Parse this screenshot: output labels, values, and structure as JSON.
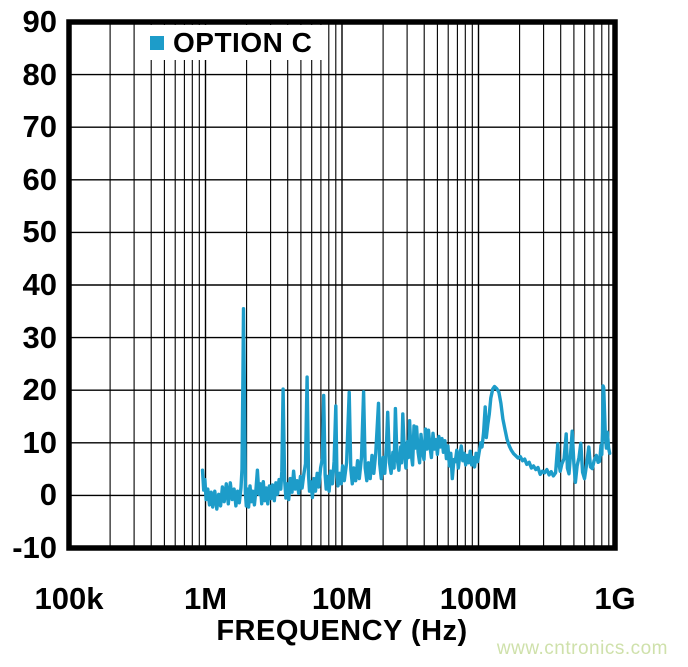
{
  "colors": {
    "background": "#ffffff",
    "grid": "#000000",
    "frame": "#000000",
    "trace": "#1d9cc9",
    "legend_bg": "#ffffff",
    "text": "#000000",
    "watermark": "#cfe1ab"
  },
  "watermark": {
    "text": "www.cntronics.com"
  },
  "chart_data": {
    "type": "line",
    "title": "",
    "x_axis": {
      "label": "FREQUENCY (Hz)",
      "scale": "log",
      "unit": "Hz",
      "range_hz": [
        100000,
        1000000000
      ],
      "ticks": [
        {
          "mhz": 0.1,
          "label": "100k"
        },
        {
          "mhz": 1,
          "label": "1M"
        },
        {
          "mhz": 10,
          "label": "10M"
        },
        {
          "mhz": 100,
          "label": "100M"
        },
        {
          "mhz": 1000,
          "label": "1G"
        }
      ],
      "minor_grid": "log sub-decades 2-9"
    },
    "y_axis": {
      "label": "",
      "range": [
        -10,
        90
      ],
      "tick_step": 10,
      "ticks": [
        90,
        80,
        70,
        60,
        50,
        40,
        30,
        20,
        10,
        0,
        -10
      ]
    },
    "grid": "on",
    "legend": {
      "position": "top-left-inside",
      "entries": [
        {
          "label": "OPTION C",
          "color": "#1d9cc9"
        }
      ]
    },
    "series": [
      {
        "name": "OPTION C",
        "color": "#1d9cc9",
        "units": "x in MHz, y in dB",
        "points_mhz_db": [
          [
            0.95,
            4.8
          ],
          [
            0.97,
            1.0
          ],
          [
            0.99,
            3.0
          ],
          [
            1.01,
            -0.8
          ],
          [
            1.04,
            1.2
          ],
          [
            1.07,
            -1.8
          ],
          [
            1.1,
            0.6
          ],
          [
            1.13,
            -2.2
          ],
          [
            1.17,
            0.8
          ],
          [
            1.21,
            -2.6
          ],
          [
            1.25,
            0.2
          ],
          [
            1.29,
            -2.0
          ],
          [
            1.33,
            1.6
          ],
          [
            1.37,
            -1.2
          ],
          [
            1.42,
            2.2
          ],
          [
            1.47,
            -1.6
          ],
          [
            1.52,
            2.4
          ],
          [
            1.57,
            -0.8
          ],
          [
            1.62,
            1.2
          ],
          [
            1.67,
            -2.0
          ],
          [
            1.72,
            0.8
          ],
          [
            1.77,
            -1.4
          ],
          [
            1.82,
            1.5
          ],
          [
            1.85,
            5.0
          ],
          [
            1.88,
            22.0
          ],
          [
            1.9,
            35.5
          ],
          [
            1.93,
            18.0
          ],
          [
            1.96,
            0.5
          ],
          [
            1.99,
            -2.0
          ],
          [
            2.03,
            1.2
          ],
          [
            2.07,
            -2.2
          ],
          [
            2.12,
            1.8
          ],
          [
            2.17,
            -1.2
          ],
          [
            2.22,
            0.8
          ],
          [
            2.28,
            -1.8
          ],
          [
            2.34,
            1.0
          ],
          [
            2.4,
            4.8
          ],
          [
            2.46,
            0.2
          ],
          [
            2.52,
            2.2
          ],
          [
            2.58,
            -1.6
          ],
          [
            2.65,
            2.6
          ],
          [
            2.72,
            -1.0
          ],
          [
            2.79,
            1.4
          ],
          [
            2.86,
            -1.6
          ],
          [
            2.94,
            1.8
          ],
          [
            3.02,
            -0.6
          ],
          [
            3.1,
            2.0
          ],
          [
            3.19,
            -1.0
          ],
          [
            3.28,
            2.4
          ],
          [
            3.37,
            0.2
          ],
          [
            3.46,
            3.0
          ],
          [
            3.56,
            1.2
          ],
          [
            3.62,
            4.5
          ],
          [
            3.7,
            20.2
          ],
          [
            3.8,
            3.0
          ],
          [
            3.88,
            -0.5
          ],
          [
            3.97,
            2.2
          ],
          [
            4.07,
            -0.8
          ],
          [
            4.18,
            3.2
          ],
          [
            4.3,
            0.6
          ],
          [
            4.42,
            4.6
          ],
          [
            4.55,
            1.2
          ],
          [
            4.68,
            2.8
          ],
          [
            4.82,
            0.4
          ],
          [
            4.96,
            3.6
          ],
          [
            5.1,
            1.4
          ],
          [
            5.25,
            4.0
          ],
          [
            5.4,
            6.0
          ],
          [
            5.55,
            22.5
          ],
          [
            5.68,
            4.0
          ],
          [
            5.78,
            0.8
          ],
          [
            5.92,
            2.6
          ],
          [
            6.07,
            -0.4
          ],
          [
            6.23,
            3.2
          ],
          [
            6.4,
            0.8
          ],
          [
            6.58,
            4.2
          ],
          [
            6.77,
            1.6
          ],
          [
            6.97,
            5.2
          ],
          [
            7.18,
            7.0
          ],
          [
            7.35,
            19.0
          ],
          [
            7.52,
            4.0
          ],
          [
            7.66,
            1.2
          ],
          [
            7.85,
            3.6
          ],
          [
            8.05,
            0.8
          ],
          [
            8.27,
            4.6
          ],
          [
            8.5,
            2.2
          ],
          [
            8.75,
            6.5
          ],
          [
            9.0,
            17.0
          ],
          [
            9.18,
            4.2
          ],
          [
            9.35,
            1.8
          ],
          [
            9.6,
            4.2
          ],
          [
            9.86,
            2.2
          ],
          [
            10.1,
            5.6
          ],
          [
            10.4,
            2.8
          ],
          [
            10.8,
            6.2
          ],
          [
            11.3,
            19.6
          ],
          [
            11.6,
            5.0
          ],
          [
            11.9,
            2.2
          ],
          [
            12.2,
            5.2
          ],
          [
            12.6,
            2.8
          ],
          [
            13.0,
            6.6
          ],
          [
            13.4,
            3.2
          ],
          [
            13.9,
            7.2
          ],
          [
            14.4,
            19.7
          ],
          [
            14.8,
            5.2
          ],
          [
            15.2,
            2.8
          ],
          [
            15.6,
            6.2
          ],
          [
            16.1,
            3.2
          ],
          [
            16.6,
            7.6
          ],
          [
            17.1,
            4.2
          ],
          [
            17.7,
            8.2
          ],
          [
            18.5,
            17.5
          ],
          [
            18.9,
            6.0
          ],
          [
            19.4,
            3.2
          ],
          [
            20.0,
            7.2
          ],
          [
            20.6,
            4.2
          ],
          [
            21.1,
            9.0
          ],
          [
            21.6,
            15.8
          ],
          [
            22.3,
            6.2
          ],
          [
            22.9,
            4.2
          ],
          [
            23.6,
            8.2
          ],
          [
            24.1,
            5.2
          ],
          [
            24.6,
            16.5
          ],
          [
            25.3,
            7.2
          ],
          [
            26.1,
            4.8
          ],
          [
            26.9,
            9.2
          ],
          [
            27.3,
            6.2
          ],
          [
            27.9,
            15.5
          ],
          [
            28.6,
            8.2
          ],
          [
            29.4,
            5.2
          ],
          [
            30.2,
            10.2
          ],
          [
            30.7,
            7.2
          ],
          [
            31.3,
            14.2
          ],
          [
            32.0,
            8.2
          ],
          [
            32.9,
            5.8
          ],
          [
            33.7,
            13.2
          ],
          [
            34.4,
            9.0
          ],
          [
            35.2,
            13.0
          ],
          [
            36.1,
            8.2
          ],
          [
            37.0,
            6.2
          ],
          [
            37.9,
            11.6
          ],
          [
            38.9,
            8.2
          ],
          [
            39.9,
            6.8
          ],
          [
            40.9,
            12.6
          ],
          [
            41.9,
            8.8
          ],
          [
            43.0,
            12.4
          ],
          [
            44.1,
            9.2
          ],
          [
            45.2,
            7.2
          ],
          [
            46.4,
            11.8
          ],
          [
            47.6,
            8.8
          ],
          [
            48.8,
            10.6
          ],
          [
            50.0,
            7.8
          ],
          [
            51.3,
            11.2
          ],
          [
            52.6,
            9.2
          ],
          [
            54.0,
            10.8
          ],
          [
            55.3,
            8.2
          ],
          [
            56.7,
            10.4
          ],
          [
            58.2,
            7.0
          ],
          [
            59.7,
            9.4
          ],
          [
            61.2,
            5.6
          ],
          [
            62.7,
            8.0
          ],
          [
            64.3,
            3.2
          ],
          [
            66.0,
            6.8
          ],
          [
            67.6,
            6.4
          ],
          [
            69.4,
            8.6
          ],
          [
            71.1,
            5.2
          ],
          [
            72.9,
            7.6
          ],
          [
            74.8,
            9.4
          ],
          [
            76.7,
            6.6
          ],
          [
            78.6,
            8.0
          ],
          [
            80.6,
            5.8
          ],
          [
            82.7,
            7.6
          ],
          [
            84.8,
            6.2
          ],
          [
            86.9,
            8.4
          ],
          [
            89.1,
            5.8
          ],
          [
            91.4,
            7.2
          ],
          [
            93.7,
            5.4
          ],
          [
            96.1,
            8.0
          ],
          [
            98.5,
            6.4
          ],
          [
            101,
            8.2
          ],
          [
            104,
            10.0
          ],
          [
            106,
            9.2
          ],
          [
            109,
            12.0
          ],
          [
            112,
            16.8
          ],
          [
            114,
            11.0
          ],
          [
            117,
            13.5
          ],
          [
            120,
            15.5
          ],
          [
            123,
            18.5
          ],
          [
            127,
            20.2
          ],
          [
            131,
            20.7
          ],
          [
            136,
            20.3
          ],
          [
            141,
            19.6
          ],
          [
            146,
            17.5
          ],
          [
            151,
            14.5
          ],
          [
            156,
            12.6
          ],
          [
            162,
            10.6
          ],
          [
            168,
            9.4
          ],
          [
            174,
            8.6
          ],
          [
            181,
            7.9
          ],
          [
            188,
            7.5
          ],
          [
            195,
            7.1
          ],
          [
            202,
            7.4
          ],
          [
            210,
            6.6
          ],
          [
            218,
            6.9
          ],
          [
            226,
            5.9
          ],
          [
            235,
            6.3
          ],
          [
            244,
            5.2
          ],
          [
            253,
            5.6
          ],
          [
            263,
            4.9
          ],
          [
            273,
            5.3
          ],
          [
            283,
            4.0
          ],
          [
            294,
            4.6
          ],
          [
            305,
            4.3
          ],
          [
            317,
            4.9
          ],
          [
            329,
            3.9
          ],
          [
            341,
            4.5
          ],
          [
            354,
            3.7
          ],
          [
            367,
            4.3
          ],
          [
            381,
            9.8
          ],
          [
            389,
            6.0
          ],
          [
            397,
            4.6
          ],
          [
            408,
            6.0
          ],
          [
            424,
            7.0
          ],
          [
            439,
            11.7
          ],
          [
            448,
            5.2
          ],
          [
            460,
            4.1
          ],
          [
            470,
            7.0
          ],
          [
            486,
            12.2
          ],
          [
            500,
            6.0
          ],
          [
            513,
            2.5
          ],
          [
            528,
            5.6
          ],
          [
            545,
            7.2
          ],
          [
            562,
            9.9
          ],
          [
            579,
            4.4
          ],
          [
            598,
            3.2
          ],
          [
            620,
            6.0
          ],
          [
            643,
            9.2
          ],
          [
            662,
            5.4
          ],
          [
            682,
            5.1
          ],
          [
            703,
            6.6
          ],
          [
            731,
            7.6
          ],
          [
            752,
            6.3
          ],
          [
            773,
            6.5
          ],
          [
            790,
            9.5
          ],
          [
            800,
            7.8
          ],
          [
            810,
            12.0
          ],
          [
            818,
            20.8
          ],
          [
            827,
            20.5
          ],
          [
            838,
            16.0
          ],
          [
            850,
            11.0
          ],
          [
            865,
            9.0
          ],
          [
            880,
            12.0
          ],
          [
            897,
            9.0
          ],
          [
            915,
            8.0
          ]
        ]
      }
    ]
  }
}
